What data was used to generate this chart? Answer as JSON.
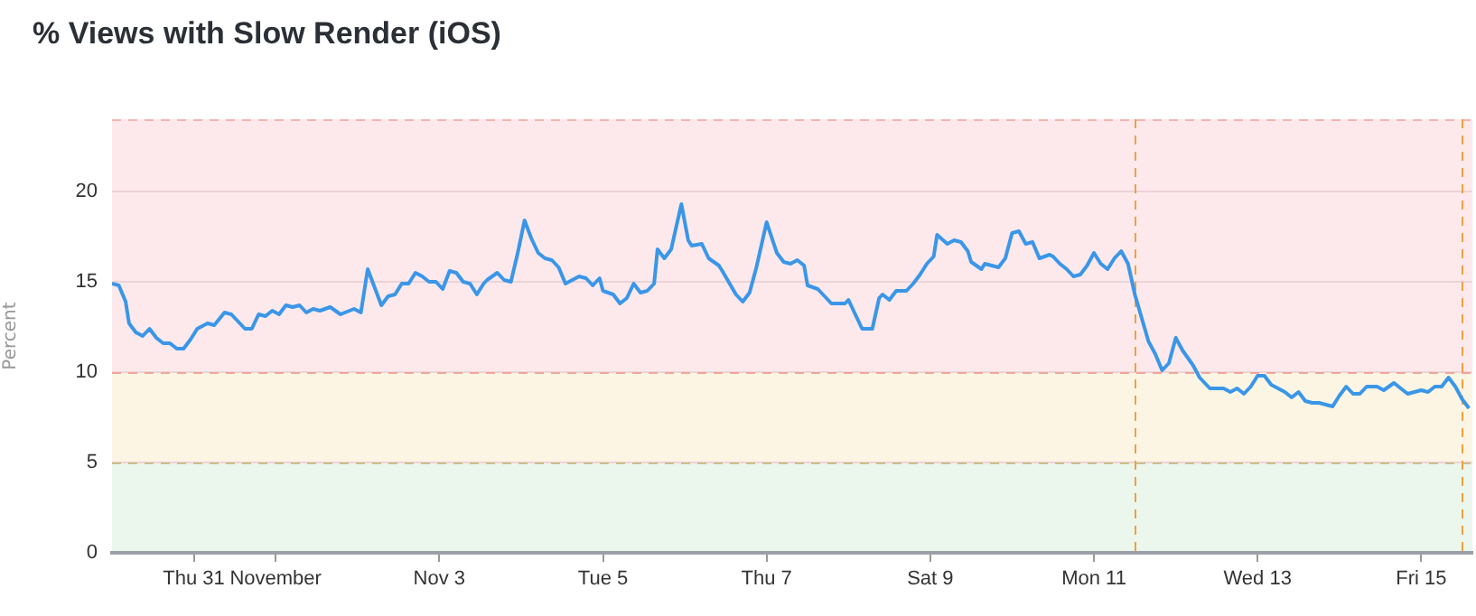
{
  "chart_data": {
    "type": "line",
    "title": "% Views with Slow Render (iOS)",
    "ylabel": "Percent",
    "x": [
      "--10-30T00:00",
      "--10-30T02:00",
      "--10-30T04:00",
      "--10-30T05:00",
      "--10-30T07:00",
      "--10-30T09:00",
      "--10-30T11:00",
      "--10-30T13:00",
      "--10-30T15:00",
      "--10-30T17:00",
      "--10-30T19:00",
      "--10-30T21:00",
      "--10-30T23:00",
      "--10-31T01:00",
      "--10-31T04:00",
      "--10-31T06:00",
      "--10-31T09:00",
      "--10-31T11:00",
      "--10-31T13:00",
      "--10-31T15:00",
      "--10-31T17:00",
      "--10-31T19:00",
      "--10-31T21:00",
      "--10-31T23:00",
      "--11-01T01:00",
      "--11-01T03:00",
      "--11-01T05:00",
      "--11-01T07:00",
      "--11-01T09:00",
      "--11-01T11:00",
      "--11-01T13:00",
      "--11-01T16:00",
      "--11-01T19:00",
      "--11-01T23:00",
      "--11-02T01:00",
      "--11-02T03:00",
      "--11-02T05:00",
      "--11-02T07:00",
      "--11-02T09:00",
      "--11-02T11:00",
      "--11-02T13:00",
      "--11-02T15:00",
      "--11-02T17:00",
      "--11-02T19:00",
      "--11-02T21:00",
      "--11-02T23:00",
      "--11-03T01:00",
      "--11-03T03:00",
      "--11-03T05:00",
      "--11-03T07:00",
      "--11-03T09:00",
      "--11-03T11:00",
      "--11-03T13:00",
      "--11-03T14:00",
      "--11-03T17:00",
      "--11-03T19:00",
      "--11-03T21:00",
      "--11-03T23:00",
      "--11-04T01:00",
      "--11-04T03:00",
      "--11-04T05:00",
      "--11-04T07:00",
      "--11-04T09:00",
      "--11-04T11:00",
      "--11-04T13:00",
      "--11-04T15:00",
      "--11-04T17:00",
      "--11-04T19:00",
      "--11-04T21:00",
      "--11-04T23:00",
      "--11-05T00:00",
      "--11-05T03:00",
      "--11-05T05:00",
      "--11-05T07:00",
      "--11-05T09:00",
      "--11-05T11:00",
      "--11-05T13:00",
      "--11-05T15:00",
      "--11-05T16:00",
      "--11-05T18:00",
      "--11-05T20:00",
      "--11-05T23:00",
      "--11-06T01:00",
      "--11-06T02:00",
      "--11-06T05:00",
      "--11-06T07:00",
      "--11-06T10:00",
      "--11-06T11:00",
      "--11-06T15:00",
      "--11-06T17:00",
      "--11-06T19:00",
      "--11-06T21:00",
      "--11-07T00:00",
      "--11-07T03:00",
      "--11-07T05:00",
      "--11-07T07:00",
      "--11-07T09:00",
      "--11-07T11:00",
      "--11-07T12:00",
      "--11-07T15:00",
      "--11-07T17:00",
      "--11-07T19:00",
      "--11-07T21:00",
      "--11-07T23:00",
      "--11-08T00:00",
      "--11-08T02:00",
      "--11-08T04:00",
      "--11-08T07:00",
      "--11-08T09:00",
      "--11-08T10:00",
      "--11-08T12:00",
      "--11-08T14:00",
      "--11-08T17:00",
      "--11-08T19:00",
      "--11-08T21:00",
      "--11-08T23:00",
      "--11-09T01:00",
      "--11-09T02:00",
      "--11-09T05:00",
      "--11-09T07:00",
      "--11-09T09:00",
      "--11-09T11:00",
      "--11-09T12:00",
      "--11-09T15:00",
      "--11-09T16:00",
      "--11-09T18:00",
      "--11-09T20:00",
      "--11-09T22:00",
      "--11-10T00:00",
      "--11-10T02:00",
      "--11-10T04:00",
      "--11-10T06:00",
      "--11-10T08:00",
      "--11-10T11:00",
      "--11-10T12:00",
      "--11-10T14:00",
      "--11-10T16:00",
      "--11-10T18:00",
      "--11-10T20:00",
      "--11-10T22:00",
      "--11-11T00:00",
      "--11-11T02:00",
      "--11-11T04:00",
      "--11-11T06:00",
      "--11-11T08:00",
      "--11-11T10:00",
      "--11-11T12:00",
      "--11-11T14:00",
      "--11-11T16:00",
      "--11-11T18:00",
      "--11-11T20:00",
      "--11-11T22:00",
      "--11-12T00:00",
      "--11-12T02:00",
      "--11-12T05:00",
      "--11-12T07:00",
      "--11-12T10:00",
      "--11-12T12:00",
      "--11-12T14:00",
      "--11-12T16:00",
      "--11-12T18:00",
      "--11-12T20:00",
      "--11-12T22:00",
      "--11-13T00:00",
      "--11-13T02:00",
      "--11-13T04:00",
      "--11-13T06:00",
      "--11-13T08:00",
      "--11-13T10:00",
      "--11-13T12:00",
      "--11-13T14:00",
      "--11-13T16:00",
      "--11-13T18:00",
      "--11-13T20:00",
      "--11-13T22:00",
      "--11-14T00:00",
      "--11-14T02:00",
      "--11-14T04:00",
      "--11-14T06:00",
      "--11-14T08:00",
      "--11-14T11:00",
      "--11-14T13:00",
      "--11-14T16:00",
      "--11-14T18:00",
      "--11-14T20:00",
      "--11-14T22:00",
      "--11-15T00:00",
      "--11-15T02:00",
      "--11-15T04:00",
      "--11-15T06:00",
      "--11-15T08:00",
      "--11-15T10:00",
      "--11-15T12:00",
      "--11-15T14:00"
    ],
    "series": [
      {
        "color": "#3a96e8",
        "values": [
          14.9,
          14.8,
          13.9,
          12.7,
          12.2,
          12.0,
          12.4,
          11.9,
          11.6,
          11.6,
          11.3,
          11.3,
          11.8,
          12.4,
          12.7,
          12.6,
          13.3,
          13.2,
          12.8,
          12.4,
          12.4,
          13.2,
          13.1,
          13.4,
          13.2,
          13.7,
          13.6,
          13.7,
          13.3,
          13.5,
          13.4,
          13.6,
          13.2,
          13.5,
          13.3,
          15.7,
          14.7,
          13.7,
          14.2,
          14.3,
          14.9,
          14.9,
          15.5,
          15.3,
          15.0,
          15.0,
          14.6,
          15.6,
          15.5,
          15.0,
          14.9,
          14.3,
          14.9,
          15.1,
          15.5,
          15.1,
          15.0,
          16.6,
          18.4,
          17.4,
          16.6,
          16.3,
          16.2,
          15.8,
          14.9,
          15.1,
          15.3,
          15.2,
          14.8,
          15.2,
          14.5,
          14.3,
          13.8,
          14.1,
          14.9,
          14.4,
          14.5,
          14.9,
          16.8,
          16.3,
          16.8,
          19.3,
          17.3,
          17.0,
          17.1,
          16.3,
          15.9,
          15.6,
          14.3,
          13.9,
          14.4,
          15.8,
          18.3,
          16.6,
          16.1,
          16.0,
          16.2,
          15.9,
          14.8,
          14.6,
          14.2,
          13.8,
          13.8,
          13.8,
          14.0,
          13.2,
          12.4,
          12.4,
          14.1,
          14.3,
          14.0,
          14.5,
          14.5,
          14.9,
          15.4,
          16.0,
          16.4,
          17.6,
          17.1,
          17.3,
          17.2,
          16.7,
          16.1,
          15.7,
          16.0,
          15.9,
          15.8,
          16.3,
          17.7,
          17.8,
          17.1,
          17.2,
          16.3,
          16.5,
          16.4,
          16.0,
          15.7,
          15.3,
          15.4,
          15.9,
          16.6,
          16.0,
          15.7,
          16.3,
          16.7,
          16.0,
          14.3,
          13.0,
          11.7,
          11.0,
          10.1,
          10.5,
          11.9,
          11.2,
          10.4,
          9.7,
          9.1,
          9.1,
          9.1,
          8.9,
          9.1,
          8.8,
          9.2,
          9.8,
          9.8,
          9.3,
          9.1,
          8.9,
          8.6,
          8.9,
          8.4,
          8.3,
          8.3,
          8.2,
          8.1,
          8.7,
          9.2,
          8.8,
          8.8,
          9.2,
          9.2,
          9.0,
          9.4,
          9.1,
          8.8,
          8.9,
          9.0,
          8.9,
          9.2,
          9.2,
          9.7,
          9.2,
          8.5,
          8.0
        ]
      }
    ],
    "xlim": [
      "--10-30T00:00",
      "--11-15T15:00"
    ],
    "xticks": [
      {
        "value": "--10-31",
        "label": "Thu 31"
      },
      {
        "value": "--11-01",
        "label": "November"
      },
      {
        "value": "--11-03",
        "label": "Nov 3"
      },
      {
        "value": "--11-05",
        "label": "Tue 5"
      },
      {
        "value": "--11-07",
        "label": "Thu 7"
      },
      {
        "value": "--11-09",
        "label": "Sat 9"
      },
      {
        "value": "--11-11",
        "label": "Mon 11"
      },
      {
        "value": "--11-13",
        "label": "Wed 13"
      },
      {
        "value": "--11-15",
        "label": "Fri 15"
      }
    ],
    "ylim": [
      0,
      24
    ],
    "yticks": [
      0,
      5,
      10,
      15,
      20
    ],
    "grid": "y",
    "bands": [
      {
        "axis": "y",
        "from": 0,
        "to": 5,
        "color": "#ebf6ec"
      },
      {
        "axis": "y",
        "from": 5,
        "to": 10,
        "color": "#fdf5e3"
      },
      {
        "axis": "y",
        "from": 10,
        "to": 24,
        "color": "#fde9ec"
      }
    ],
    "ref_lines": [
      {
        "axis": "y",
        "value": 24,
        "color": "#f4b4b0",
        "line_style": "dashed"
      },
      {
        "axis": "y",
        "value": 10,
        "color": "#f0a79c",
        "line_style": "dashed"
      },
      {
        "axis": "y",
        "value": 5,
        "color": "#c9c08a",
        "line_style": "dashed"
      },
      {
        "axis": "x",
        "value": "--11-11T12:00",
        "color": "#f0a040",
        "line_style": "dashed"
      },
      {
        "axis": "x",
        "value": "--11-15T12:00",
        "color": "#f0a040",
        "line_style": "dashed"
      }
    ]
  }
}
